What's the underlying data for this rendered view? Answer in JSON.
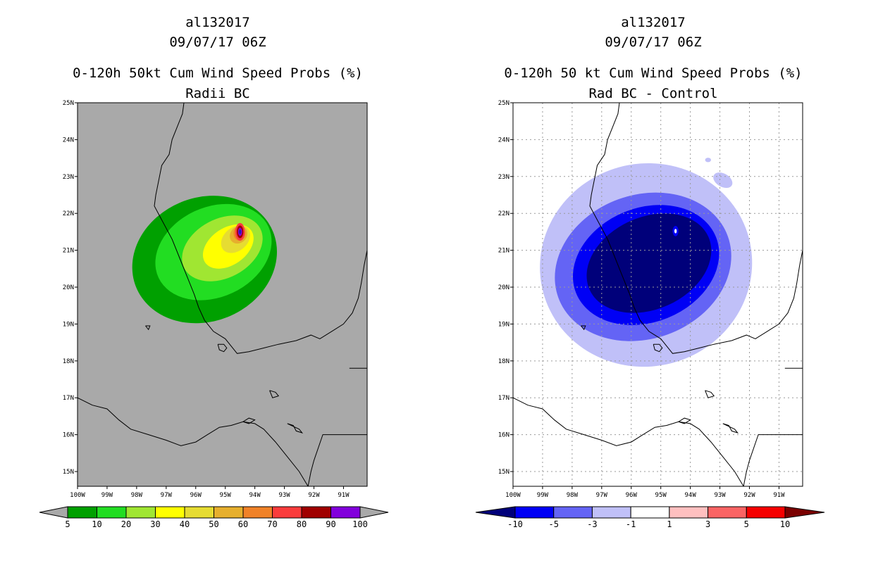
{
  "colors": {
    "background": "#ffffff",
    "panel_left_fill": "#a9a9a9",
    "coast": "#000000",
    "grid": "#9a9a9a"
  },
  "chart_data": [
    {
      "type": "heatmap",
      "id": "left",
      "title_lines": [
        "al132017",
        "09/07/17 06Z",
        "0-120h 50kt Cum Wind Speed Probs (%)",
        "Radii BC"
      ],
      "x_ticks": [
        "100W",
        "99W",
        "98W",
        "97W",
        "96W",
        "95W",
        "94W",
        "93W",
        "92W",
        "91W"
      ],
      "y_ticks": [
        "25N",
        "24N",
        "23N",
        "22N",
        "21N",
        "20N",
        "19N",
        "18N",
        "17N",
        "16N",
        "15N"
      ],
      "lon_range": [
        -100,
        -90.2
      ],
      "lat_range": [
        14.6,
        25
      ],
      "grid": false,
      "colorbar": {
        "labels": [
          "5",
          "10",
          "20",
          "30",
          "40",
          "50",
          "60",
          "70",
          "80",
          "90",
          "100"
        ],
        "colors": [
          "#00a000",
          "#22dd22",
          "#a0e632",
          "#ffff00",
          "#e6dc32",
          "#e6af2d",
          "#f08228",
          "#fa3c3c",
          "#a00000",
          "#8200dc"
        ],
        "low_color": "#a9a9a9",
        "high_color": "#a9a9a9"
      },
      "contours": [
        {
          "level": "5",
          "color": "#00a000",
          "center": [
            -95.7,
            20.75
          ],
          "radii": [
            2.5,
            1.68
          ],
          "rotation": -22
        },
        {
          "level": "10",
          "color": "#22dd22",
          "center": [
            -95.4,
            20.95
          ],
          "radii": [
            2.05,
            1.22
          ],
          "rotation": -25
        },
        {
          "level": "20",
          "color": "#a0e632",
          "center": [
            -95.1,
            21.05
          ],
          "radii": [
            1.45,
            0.8
          ],
          "rotation": -28
        },
        {
          "level": "30",
          "color": "#ffff00",
          "center": [
            -94.9,
            21.1
          ],
          "radii": [
            0.95,
            0.5
          ],
          "rotation": -35
        },
        {
          "level": "40",
          "color": "#e6dc32",
          "center": [
            -94.65,
            21.3
          ],
          "radii": [
            0.55,
            0.32
          ],
          "rotation": -40
        },
        {
          "level": "50",
          "color": "#e6af2d",
          "center": [
            -94.55,
            21.42
          ],
          "radii": [
            0.32,
            0.22
          ],
          "rotation": -45
        },
        {
          "level": "60",
          "color": "#f08228",
          "center": [
            -94.52,
            21.46
          ],
          "radii": [
            0.2,
            0.2
          ],
          "rotation": 0
        },
        {
          "level": "70",
          "color": "#fa3c3c",
          "center": [
            -94.5,
            21.5
          ],
          "radii": [
            0.16,
            0.24
          ],
          "rotation": 0
        },
        {
          "level": "80",
          "color": "#a00000",
          "center": [
            -94.5,
            21.5
          ],
          "radii": [
            0.11,
            0.17
          ],
          "rotation": 0
        },
        {
          "level": "90",
          "color": "#8200dc",
          "center": [
            -94.5,
            21.5
          ],
          "radii": [
            0.07,
            0.11
          ],
          "rotation": 0
        },
        {
          "level": "100",
          "color": "#2020b0",
          "center": [
            -94.5,
            21.5
          ],
          "radii": [
            0.04,
            0.06
          ],
          "rotation": 0
        }
      ]
    },
    {
      "type": "heatmap",
      "id": "right",
      "title_lines": [
        "al132017",
        "09/07/17 06Z",
        "0-120h 50 kt Cum Wind Speed Probs (%)",
        "Rad BC - Control"
      ],
      "x_ticks": [
        "100W",
        "99W",
        "98W",
        "97W",
        "96W",
        "95W",
        "94W",
        "93W",
        "92W",
        "91W"
      ],
      "y_ticks": [
        "25N",
        "24N",
        "23N",
        "22N",
        "21N",
        "20N",
        "19N",
        "18N",
        "17N",
        "16N",
        "15N"
      ],
      "lon_range": [
        -100,
        -90.2
      ],
      "lat_range": [
        14.6,
        25
      ],
      "grid": true,
      "colorbar": {
        "labels": [
          "-10",
          "-5",
          "-3",
          "-1",
          "1",
          "3",
          "5",
          "10"
        ],
        "colors": [
          "#0000f5",
          "#6464f5",
          "#c0c0f8",
          "#ffffff",
          "#ffc0c0",
          "#fa6464",
          "#f50000"
        ],
        "low_color": "#00007a",
        "high_color": "#7a0000"
      },
      "contours": [
        {
          "level": "-1",
          "color": "#c0c0f8",
          "center": [
            -95.5,
            20.6
          ],
          "radii": [
            3.6,
            2.75
          ],
          "rotation": -15
        },
        {
          "level": "-3",
          "color": "#6464f5",
          "center": [
            -95.6,
            20.55
          ],
          "radii": [
            3.05,
            1.95
          ],
          "rotation": -20
        },
        {
          "level": "-5",
          "color": "#0000f5",
          "center": [
            -95.5,
            20.6
          ],
          "radii": [
            2.55,
            1.55
          ],
          "rotation": -22
        },
        {
          "level": "-10",
          "color": "#00007a",
          "center": [
            -95.4,
            20.65
          ],
          "radii": [
            2.2,
            1.25
          ],
          "rotation": -24
        },
        {
          "level": "-5",
          "color": "#0000f5",
          "center": [
            -94.5,
            21.52
          ],
          "radii": [
            0.1,
            0.14
          ],
          "rotation": 0
        },
        {
          "level": "-1",
          "color": "#ffffff",
          "center": [
            -94.5,
            21.52
          ],
          "radii": [
            0.04,
            0.06
          ],
          "rotation": 0
        },
        {
          "level": "-1",
          "color": "#c0c0f8",
          "center": [
            -93.4,
            23.45
          ],
          "radii": [
            0.1,
            0.06
          ],
          "rotation": 0
        },
        {
          "level": "-1",
          "color": "#c0c0f8",
          "center": [
            -92.4,
            21.6
          ],
          "radii": [
            0.12,
            0.12
          ],
          "rotation": 0
        },
        {
          "level": "-1",
          "color": "#c0c0f8",
          "center": [
            -92.9,
            22.9
          ],
          "radii": [
            0.35,
            0.18
          ],
          "rotation": 30
        }
      ]
    }
  ]
}
